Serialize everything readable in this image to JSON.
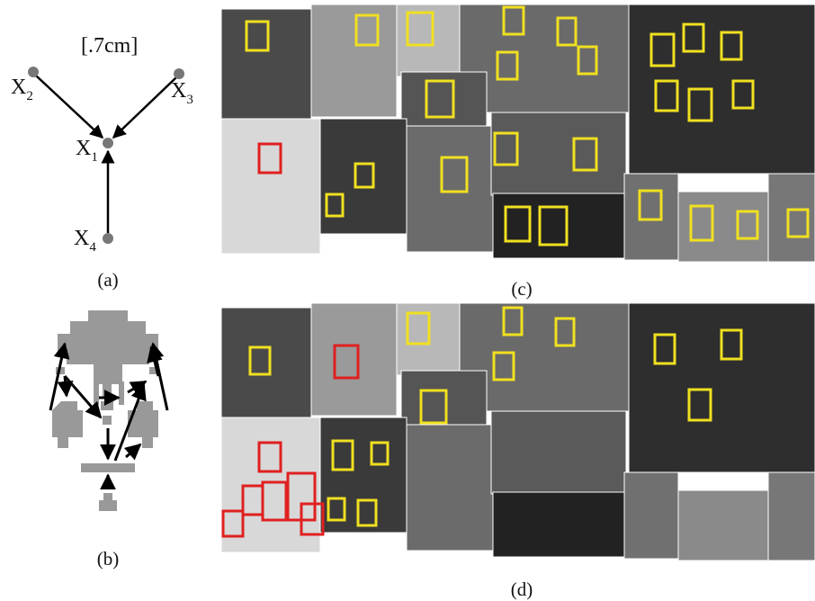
{
  "figure": {
    "annotation": "[.7cm]",
    "nodes": [
      {
        "label": "X",
        "subscript": "2"
      },
      {
        "label": "X",
        "subscript": "3"
      },
      {
        "label": "X",
        "subscript": "1"
      },
      {
        "label": "X",
        "subscript": "4"
      }
    ],
    "captions": [
      "(a)",
      "(b)",
      "(c)",
      "(d)"
    ]
  }
}
